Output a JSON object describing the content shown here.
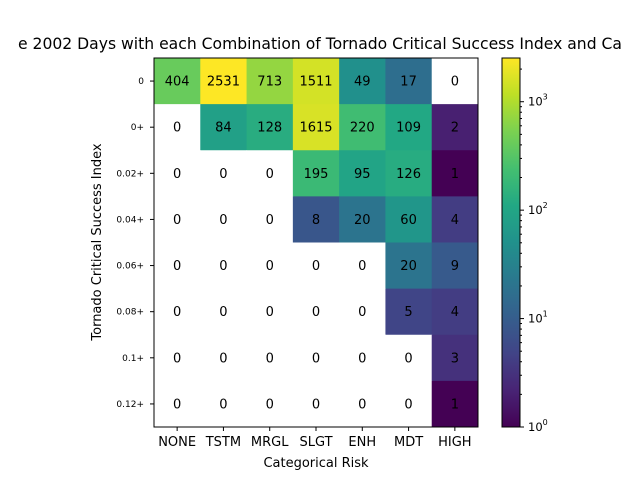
{
  "chart_data": {
    "type": "heatmap",
    "title": "e 2002 Days with each Combination of Tornado Critical Success Index and Ca",
    "xlabel": "Categorical Risk",
    "ylabel": "Tornado Critical Success Index",
    "x_categories": [
      "NONE",
      "TSTM",
      "MRGL",
      "SLGT",
      "ENH",
      "MDT",
      "HIGH"
    ],
    "y_categories": [
      "0",
      "0+",
      "0.02+",
      "0.04+",
      "0.06+",
      "0.08+",
      "0.1+",
      "0.12+"
    ],
    "values": [
      [
        404,
        2531,
        713,
        1511,
        49,
        17,
        0
      ],
      [
        0,
        84,
        128,
        1615,
        220,
        109,
        2
      ],
      [
        0,
        0,
        0,
        195,
        95,
        126,
        1
      ],
      [
        0,
        0,
        0,
        8,
        20,
        60,
        4
      ],
      [
        0,
        0,
        0,
        0,
        0,
        20,
        9
      ],
      [
        0,
        0,
        0,
        0,
        0,
        5,
        4
      ],
      [
        0,
        0,
        0,
        0,
        0,
        0,
        3
      ],
      [
        0,
        0,
        0,
        0,
        0,
        0,
        1
      ]
    ],
    "color_scale": "log",
    "colormap": "viridis",
    "colorbar": {
      "range": [
        1,
        2531
      ],
      "ticks": [
        {
          "base": "10",
          "exp": "0",
          "value": 1
        },
        {
          "base": "10",
          "exp": "1",
          "value": 10
        },
        {
          "base": "10",
          "exp": "2",
          "value": 100
        },
        {
          "base": "10",
          "exp": "3",
          "value": 1000
        }
      ]
    },
    "zero_cell_color": "#ffffff",
    "grid": false
  }
}
